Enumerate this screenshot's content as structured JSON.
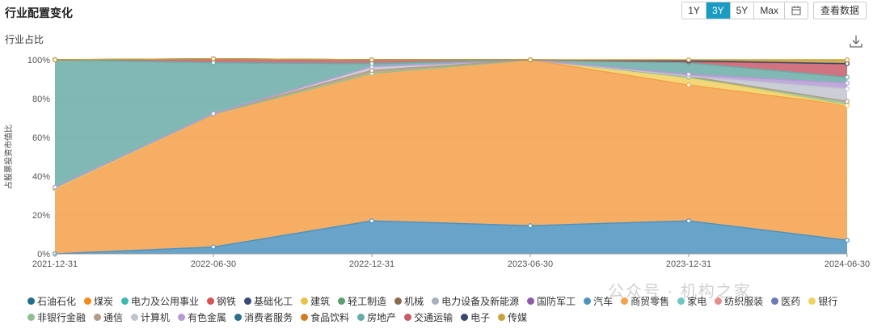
{
  "header": {
    "title": "行业配置变化",
    "ranges": [
      "1Y",
      "3Y",
      "5Y",
      "Max"
    ],
    "active_range": "3Y",
    "calendar_icon": "calendar-icon",
    "view_data_label": "查看数据"
  },
  "chart_title": "行业占比",
  "download_icon": "download-icon",
  "watermark": "公众号 · 机构之家",
  "chart_data": {
    "type": "area",
    "stacked": true,
    "ylabel": "占股票投资市值比",
    "ylim": [
      0,
      100
    ],
    "ytick_labels": [
      "0%",
      "20%",
      "40%",
      "60%",
      "80%",
      "100%"
    ],
    "x": [
      "2021-12-31",
      "2022-06-30",
      "2022-12-31",
      "2023-06-30",
      "2023-12-31",
      "2024-06-30"
    ],
    "grid": true,
    "legend_position": "bottom",
    "series": [
      {
        "name": "石油石化",
        "color": "#1f6e8c",
        "values": [
          0,
          0,
          0,
          0,
          0,
          0
        ]
      },
      {
        "name": "煤炭",
        "color": "#f28a1c",
        "values": [
          0,
          0,
          0,
          0,
          0,
          0
        ]
      },
      {
        "name": "电力及公用事业",
        "color": "#3fb7b0",
        "values": [
          0,
          0,
          0,
          0,
          0,
          0
        ]
      },
      {
        "name": "钢铁",
        "color": "#d9534f",
        "values": [
          0,
          0,
          0,
          0,
          0,
          0
        ]
      },
      {
        "name": "基础化工",
        "color": "#3a4a7a",
        "values": [
          0,
          0,
          0,
          0,
          0,
          0
        ]
      },
      {
        "name": "建筑",
        "color": "#e8c34a",
        "values": [
          0,
          0,
          0,
          0,
          0,
          0
        ]
      },
      {
        "name": "轻工制造",
        "color": "#5e9e6e",
        "values": [
          0,
          0,
          0,
          0,
          0,
          0
        ]
      },
      {
        "name": "机械",
        "color": "#8b6a4e",
        "values": [
          0,
          0,
          0,
          0,
          0,
          0
        ]
      },
      {
        "name": "电力设备及新能源",
        "color": "#a8b0bd",
        "values": [
          0,
          0,
          0,
          0,
          0,
          0
        ]
      },
      {
        "name": "国防军工",
        "color": "#8e5ba8",
        "values": [
          0,
          0,
          0,
          0,
          0,
          0
        ]
      },
      {
        "name": "汽车",
        "color": "#4d93c1",
        "values": [
          0,
          3.5,
          17,
          14.5,
          17,
          7
        ]
      },
      {
        "name": "商贸零售",
        "color": "#f5a04a",
        "values": [
          33.5,
          68.5,
          76,
          85.5,
          70,
          69.5
        ]
      },
      {
        "name": "家电",
        "color": "#6dc8c0",
        "values": [
          0,
          0,
          0,
          0,
          0,
          0
        ]
      },
      {
        "name": "纺织服装",
        "color": "#e88a8a",
        "values": [
          0,
          0,
          0,
          0,
          0,
          0
        ]
      },
      {
        "name": "医药",
        "color": "#6a7ab8",
        "values": [
          0,
          0,
          0,
          0,
          0,
          0
        ]
      },
      {
        "name": "银行",
        "color": "#f0d060",
        "values": [
          0,
          0,
          0,
          0,
          4,
          0
        ]
      },
      {
        "name": "非银行金融",
        "color": "#8fbf8f",
        "values": [
          0.5,
          0,
          0,
          0,
          0,
          2
        ]
      },
      {
        "name": "通信",
        "color": "#b59a84",
        "values": [
          0.3,
          0.3,
          1.5,
          0,
          0.5,
          0
        ]
      },
      {
        "name": "计算机",
        "color": "#c0c6d0",
        "values": [
          0,
          0,
          2,
          0,
          0,
          6.5
        ]
      },
      {
        "name": "有色金属",
        "color": "#b59ad4",
        "values": [
          0,
          0,
          0,
          0,
          1,
          3
        ]
      },
      {
        "name": "消费者服务",
        "color": "#2a6f8a",
        "values": [
          0,
          0,
          0,
          0,
          0,
          0
        ]
      },
      {
        "name": "食品饮料",
        "color": "#d17a1f",
        "values": [
          0,
          0,
          0,
          0,
          0,
          0
        ]
      },
      {
        "name": "房地产",
        "color": "#6aaba6",
        "values": [
          65.7,
          26.2,
          1.5,
          0,
          6,
          3
        ]
      },
      {
        "name": "交通运输",
        "color": "#c95a6a",
        "values": [
          0,
          2,
          2,
          0,
          0.5,
          7
        ]
      },
      {
        "name": "电子",
        "color": "#34496e",
        "values": [
          0,
          0,
          0,
          0,
          0.5,
          0
        ]
      },
      {
        "name": "传媒",
        "color": "#c9a23a",
        "values": [
          0,
          0,
          0,
          0,
          0.5,
          2
        ]
      }
    ]
  }
}
